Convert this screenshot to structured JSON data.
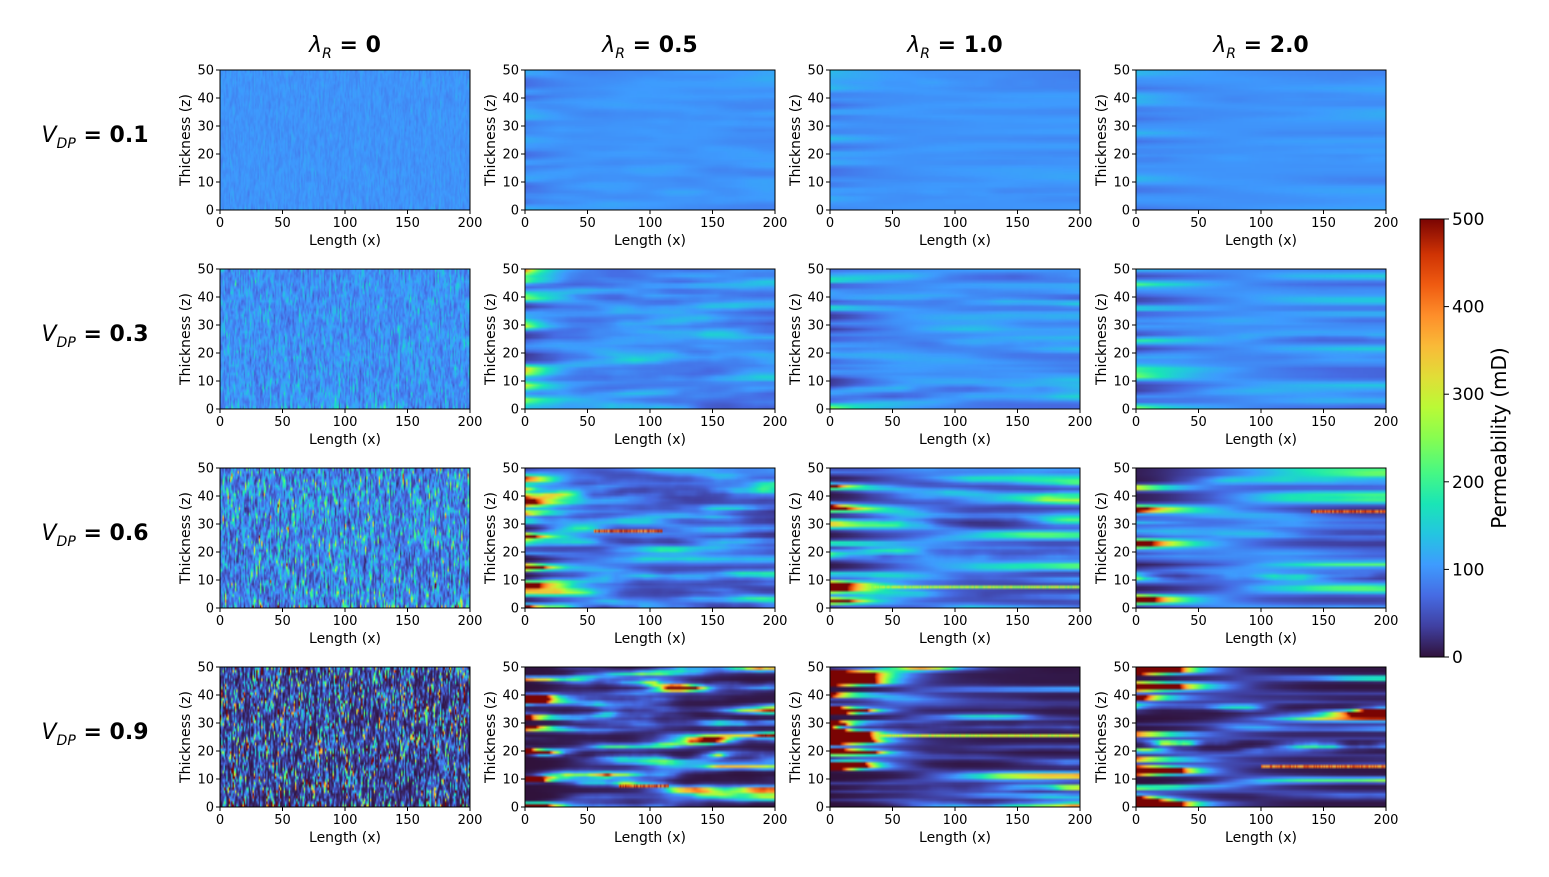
{
  "chart_data": {
    "type": "heatmap",
    "colormap": "turbo",
    "title": "",
    "col_headers": [
      {
        "symbol": "λ",
        "sub": "R",
        "value": "0"
      },
      {
        "symbol": "λ",
        "sub": "R",
        "value": "0.5"
      },
      {
        "symbol": "λ",
        "sub": "R",
        "value": "1.0"
      },
      {
        "symbol": "λ",
        "sub": "R",
        "value": "2.0"
      }
    ],
    "row_headers": [
      {
        "symbol": "V",
        "sub": "DP",
        "value": "0.1"
      },
      {
        "symbol": "V",
        "sub": "DP",
        "value": "0.3"
      },
      {
        "symbol": "V",
        "sub": "DP",
        "value": "0.6"
      },
      {
        "symbol": "V",
        "sub": "DP",
        "value": "0.9"
      }
    ],
    "lambda_values": [
      0,
      0.5,
      1.0,
      2.0
    ],
    "vdp_values": [
      0.1,
      0.3,
      0.6,
      0.9
    ],
    "xlabel": "Length (x)",
    "ylabel": "Thickness (z)",
    "xlim": [
      0,
      200
    ],
    "ylim": [
      0,
      50
    ],
    "xticks": [
      0,
      50,
      100,
      150,
      200
    ],
    "yticks": [
      0,
      10,
      20,
      30,
      40,
      50
    ],
    "colorbar": {
      "label": "Permeability (mD)",
      "range": [
        0,
        500
      ],
      "ticks": [
        0,
        100,
        200,
        300,
        400,
        500
      ]
    },
    "mean_permeability_mD": 100,
    "notable_high_streaks": [
      {
        "vdp": 0.6,
        "lambda": 0.5,
        "z": 27,
        "x_range": [
          55,
          110
        ],
        "value_mD": 480
      },
      {
        "vdp": 0.6,
        "lambda": 1.0,
        "z": 7,
        "x_range": [
          0,
          200
        ],
        "value_mD": 300
      },
      {
        "vdp": 0.6,
        "lambda": 2.0,
        "z": 34,
        "x_range": [
          140,
          200
        ],
        "value_mD": 480
      },
      {
        "vdp": 0.9,
        "lambda": 0.5,
        "z": 7,
        "x_range": [
          75,
          115
        ],
        "value_mD": 480
      },
      {
        "vdp": 0.9,
        "lambda": 1.0,
        "z": 25,
        "x_range": [
          0,
          200
        ],
        "value_mD": 330
      },
      {
        "vdp": 0.9,
        "lambda": 2.0,
        "z": 14,
        "x_range": [
          100,
          200
        ],
        "value_mD": 450
      }
    ]
  }
}
